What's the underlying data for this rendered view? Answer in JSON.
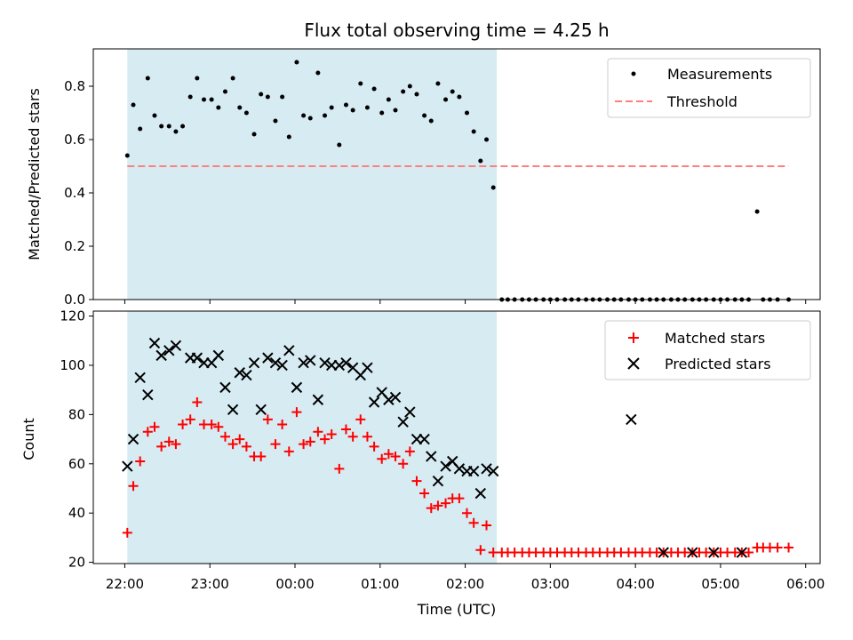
{
  "chart_data": [
    {
      "type": "scatter",
      "title": "Flux total observing time = 4.25 h",
      "ylabel": "Matched/Predicted stars",
      "xlabel": "",
      "ylim": [
        0,
        0.94
      ],
      "yticks": [
        0.0,
        0.2,
        0.4,
        0.6,
        0.8
      ],
      "ytick_labels": [
        "0.0",
        "0.2",
        "0.4",
        "0.6",
        "0.8"
      ],
      "xlim_hours": [
        21.63,
        30.17
      ],
      "xticks_hours": [
        22,
        23,
        24,
        25,
        26,
        27,
        28,
        29,
        30
      ],
      "shaded_span_hours": [
        22.03,
        26.37
      ],
      "legend_position": "top-right",
      "legend": [
        "Measurements",
        "Threshold"
      ],
      "threshold": {
        "name": "Threshold",
        "value": 0.5,
        "x_range_hours": [
          22.03,
          29.8
        ],
        "color": "#ff7f7f"
      },
      "series": [
        {
          "name": "Measurements",
          "color": "#000000",
          "x_hours": [
            22.03,
            22.1,
            22.18,
            22.27,
            22.35,
            22.43,
            22.52,
            22.6,
            22.68,
            22.77,
            22.85,
            22.93,
            23.02,
            23.1,
            23.18,
            23.27,
            23.35,
            23.43,
            23.52,
            23.6,
            23.68,
            23.77,
            23.85,
            23.93,
            24.02,
            24.1,
            24.18,
            24.27,
            24.35,
            24.43,
            24.52,
            24.6,
            24.68,
            24.77,
            24.85,
            24.93,
            25.02,
            25.1,
            25.18,
            25.27,
            25.35,
            25.43,
            25.52,
            25.6,
            25.68,
            25.77,
            25.85,
            25.93,
            26.02,
            26.1,
            26.18,
            26.25,
            26.33,
            26.43,
            26.5,
            26.58,
            26.67,
            26.75,
            26.83,
            26.92,
            27.0,
            27.08,
            27.17,
            27.25,
            27.33,
            27.42,
            27.5,
            27.58,
            27.67,
            27.75,
            27.83,
            27.92,
            28.0,
            28.08,
            28.17,
            28.25,
            28.33,
            28.42,
            28.5,
            28.58,
            28.67,
            28.75,
            28.83,
            28.92,
            29.0,
            29.08,
            29.17,
            29.25,
            29.33,
            29.43,
            29.5,
            29.58,
            29.67,
            29.8
          ],
          "y": [
            0.54,
            0.73,
            0.64,
            0.83,
            0.69,
            0.65,
            0.65,
            0.63,
            0.65,
            0.76,
            0.83,
            0.75,
            0.75,
            0.72,
            0.78,
            0.83,
            0.72,
            0.7,
            0.62,
            0.77,
            0.76,
            0.67,
            0.76,
            0.61,
            0.89,
            0.69,
            0.68,
            0.85,
            0.69,
            0.72,
            0.58,
            0.73,
            0.71,
            0.81,
            0.72,
            0.79,
            0.7,
            0.75,
            0.71,
            0.78,
            0.8,
            0.77,
            0.69,
            0.67,
            0.81,
            0.75,
            0.78,
            0.76,
            0.7,
            0.63,
            0.52,
            0.6,
            0.42,
            0.0,
            0.0,
            0.0,
            0.0,
            0.0,
            0.0,
            0.0,
            0.0,
            0.0,
            0.0,
            0.0,
            0.0,
            0.0,
            0.0,
            0.0,
            0.0,
            0.0,
            0.0,
            0.0,
            0.0,
            0.0,
            0.0,
            0.0,
            0.0,
            0.0,
            0.0,
            0.0,
            0.0,
            0.0,
            0.0,
            0.0,
            0.0,
            0.0,
            0.0,
            0.0,
            0.0,
            0.33,
            0.0,
            0.0,
            0.0,
            0.0
          ]
        }
      ]
    },
    {
      "type": "scatter",
      "title": "",
      "ylabel": "Count",
      "xlabel": "Time (UTC)",
      "ylim": [
        19.5,
        122
      ],
      "yticks": [
        20,
        40,
        60,
        80,
        100,
        120
      ],
      "ytick_labels": [
        "20",
        "40",
        "60",
        "80",
        "100",
        "120"
      ],
      "xlim_hours": [
        21.63,
        30.17
      ],
      "xticks_hours": [
        22,
        23,
        24,
        25,
        26,
        27,
        28,
        29,
        30
      ],
      "xtick_labels": [
        "22:00",
        "23:00",
        "00:00",
        "01:00",
        "02:00",
        "03:00",
        "04:00",
        "05:00",
        "06:00"
      ],
      "shaded_span_hours": [
        22.03,
        26.37
      ],
      "legend_position": "top-right",
      "legend": [
        "Matched stars",
        "Predicted stars"
      ],
      "series": [
        {
          "name": "Matched stars",
          "marker": "plus",
          "color": "#ff0000",
          "x_hours": [
            22.03,
            22.1,
            22.18,
            22.27,
            22.35,
            22.43,
            22.52,
            22.6,
            22.68,
            22.77,
            22.85,
            22.93,
            23.02,
            23.1,
            23.18,
            23.27,
            23.35,
            23.43,
            23.52,
            23.6,
            23.68,
            23.77,
            23.85,
            23.93,
            24.02,
            24.1,
            24.18,
            24.27,
            24.35,
            24.43,
            24.52,
            24.6,
            24.68,
            24.77,
            24.85,
            24.93,
            25.02,
            25.1,
            25.18,
            25.27,
            25.35,
            25.43,
            25.52,
            25.6,
            25.68,
            25.77,
            25.85,
            25.93,
            26.02,
            26.1,
            26.18,
            26.25,
            26.33,
            26.43,
            26.5,
            26.58,
            26.67,
            26.75,
            26.83,
            26.92,
            27.0,
            27.08,
            27.17,
            27.25,
            27.33,
            27.42,
            27.5,
            27.58,
            27.67,
            27.75,
            27.83,
            27.92,
            28.0,
            28.08,
            28.17,
            28.25,
            28.33,
            28.42,
            28.5,
            28.58,
            28.67,
            28.75,
            28.83,
            28.92,
            29.0,
            29.08,
            29.17,
            29.25,
            29.33,
            29.43,
            29.5,
            29.58,
            29.67,
            29.8
          ],
          "y": [
            32,
            51,
            61,
            73,
            75,
            67,
            69,
            68,
            76,
            78,
            85,
            76,
            76,
            75,
            71,
            68,
            70,
            67,
            63,
            63,
            78,
            68,
            76,
            65,
            81,
            68,
            69,
            73,
            70,
            72,
            58,
            74,
            71,
            78,
            71,
            67,
            62,
            64,
            63,
            60,
            65,
            53,
            48,
            42,
            43,
            44,
            46,
            46,
            40,
            36,
            25,
            35,
            24,
            24,
            24,
            24,
            24,
            24,
            24,
            24,
            24,
            24,
            24,
            24,
            24,
            24,
            24,
            24,
            24,
            24,
            24,
            24,
            24,
            24,
            24,
            24,
            24,
            24,
            24,
            24,
            24,
            24,
            24,
            24,
            24,
            24,
            24,
            24,
            24,
            26,
            26,
            26,
            26,
            26
          ]
        },
        {
          "name": "Predicted stars",
          "marker": "x",
          "color": "#000000",
          "x_hours": [
            22.03,
            22.1,
            22.18,
            22.27,
            22.35,
            22.43,
            22.52,
            22.6,
            22.77,
            22.85,
            22.93,
            23.02,
            23.1,
            23.18,
            23.27,
            23.35,
            23.43,
            23.52,
            23.6,
            23.68,
            23.77,
            23.85,
            23.93,
            24.02,
            24.1,
            24.18,
            24.27,
            24.35,
            24.43,
            24.52,
            24.6,
            24.68,
            24.77,
            24.85,
            24.93,
            25.02,
            25.1,
            25.18,
            25.27,
            25.35,
            25.43,
            25.52,
            25.6,
            25.68,
            25.77,
            25.85,
            25.93,
            26.02,
            26.1,
            26.18,
            26.25,
            26.33,
            27.95,
            28.33,
            28.67,
            28.92,
            29.25
          ],
          "y": [
            59,
            70,
            95,
            88,
            109,
            104,
            106,
            108,
            103,
            103,
            101,
            101,
            104,
            91,
            82,
            97,
            96,
            101,
            82,
            103,
            101,
            100,
            106,
            91,
            101,
            102,
            86,
            101,
            100,
            100,
            101,
            99,
            96,
            99,
            85,
            89,
            86,
            87,
            77,
            81,
            70,
            70,
            63,
            53,
            59,
            61,
            58,
            57,
            57,
            48,
            58,
            57,
            78,
            24,
            24,
            24,
            24
          ]
        }
      ]
    }
  ]
}
